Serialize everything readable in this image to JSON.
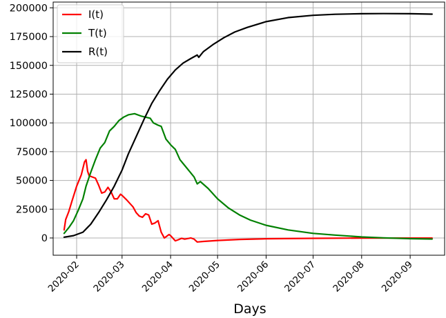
{
  "chart_data": {
    "type": "line",
    "title": "",
    "xlabel": "Days",
    "ylabel": "",
    "x_axis": "date",
    "xlim": [
      "2020-01-17",
      "2020-09-23"
    ],
    "ylim": [
      -15000,
      205000
    ],
    "grid": true,
    "legend_position": "upper-left",
    "xticks": [
      "2020-02",
      "2020-03",
      "2020-04",
      "2020-05",
      "2020-06",
      "2020-07",
      "2020-08",
      "2020-09"
    ],
    "xtick_dates": [
      "2020-02-01",
      "2020-03-01",
      "2020-04-01",
      "2020-05-01",
      "2020-06-01",
      "2020-07-01",
      "2020-08-01",
      "2020-09-01"
    ],
    "yticks": [
      0,
      25000,
      50000,
      75000,
      100000,
      125000,
      150000,
      175000,
      200000
    ],
    "ytick_labels": [
      "0",
      "25000",
      "50000",
      "75000",
      "100000",
      "125000",
      "150000",
      "175000",
      "200000"
    ],
    "series": [
      {
        "name": "I(t)",
        "color": "#ff0000",
        "points": [
          [
            "2020-01-24",
            7000
          ],
          [
            "2020-01-25",
            16000
          ],
          [
            "2020-01-27",
            23000
          ],
          [
            "2020-01-29",
            32000
          ],
          [
            "2020-02-01",
            45000
          ],
          [
            "2020-02-04",
            55000
          ],
          [
            "2020-02-06",
            66000
          ],
          [
            "2020-02-07",
            68000
          ],
          [
            "2020-02-08",
            58000
          ],
          [
            "2020-02-09",
            54000
          ],
          [
            "2020-02-13",
            52000
          ],
          [
            "2020-02-15",
            46000
          ],
          [
            "2020-02-17",
            39000
          ],
          [
            "2020-02-19",
            40000
          ],
          [
            "2020-02-21",
            44000
          ],
          [
            "2020-02-23",
            40000
          ],
          [
            "2020-02-25",
            34000
          ],
          [
            "2020-02-27",
            34000
          ],
          [
            "2020-02-29",
            38000
          ],
          [
            "2020-03-01",
            37000
          ],
          [
            "2020-03-04",
            33000
          ],
          [
            "2020-03-08",
            27000
          ],
          [
            "2020-03-10",
            22000
          ],
          [
            "2020-03-12",
            19000
          ],
          [
            "2020-03-14",
            18000
          ],
          [
            "2020-03-16",
            21000
          ],
          [
            "2020-03-18",
            20000
          ],
          [
            "2020-03-20",
            12000
          ],
          [
            "2020-03-22",
            13000
          ],
          [
            "2020-03-24",
            15000
          ],
          [
            "2020-03-26",
            5000
          ],
          [
            "2020-03-28",
            0
          ],
          [
            "2020-03-31",
            3000
          ],
          [
            "2020-04-01",
            2000
          ],
          [
            "2020-04-04",
            -2500
          ],
          [
            "2020-04-06",
            -1500
          ],
          [
            "2020-04-08",
            -300
          ],
          [
            "2020-04-10",
            -1000
          ],
          [
            "2020-04-12",
            -500
          ],
          [
            "2020-04-14",
            0
          ],
          [
            "2020-04-16",
            -1000
          ],
          [
            "2020-04-18",
            -3500
          ],
          [
            "2020-04-22",
            -3000
          ],
          [
            "2020-05-01",
            -2200
          ],
          [
            "2020-05-15",
            -1300
          ],
          [
            "2020-06-01",
            -700
          ],
          [
            "2020-07-01",
            -300
          ],
          [
            "2020-08-01",
            -100
          ],
          [
            "2020-09-01",
            -50
          ],
          [
            "2020-09-15",
            -50
          ]
        ]
      },
      {
        "name": "T(t)",
        "color": "#008000",
        "points": [
          [
            "2020-01-24",
            4000
          ],
          [
            "2020-01-27",
            9000
          ],
          [
            "2020-01-30",
            15000
          ],
          [
            "2020-02-02",
            24000
          ],
          [
            "2020-02-05",
            34000
          ],
          [
            "2020-02-07",
            45000
          ],
          [
            "2020-02-10",
            57000
          ],
          [
            "2020-02-13",
            68000
          ],
          [
            "2020-02-16",
            78000
          ],
          [
            "2020-02-19",
            83000
          ],
          [
            "2020-02-22",
            93000
          ],
          [
            "2020-02-25",
            97000
          ],
          [
            "2020-02-28",
            102000
          ],
          [
            "2020-03-02",
            105000
          ],
          [
            "2020-03-05",
            107000
          ],
          [
            "2020-03-09",
            108000
          ],
          [
            "2020-03-13",
            106000
          ],
          [
            "2020-03-16",
            105000
          ],
          [
            "2020-03-19",
            104000
          ],
          [
            "2020-03-21",
            100000
          ],
          [
            "2020-03-24",
            98000
          ],
          [
            "2020-03-26",
            97000
          ],
          [
            "2020-03-29",
            86000
          ],
          [
            "2020-04-01",
            81000
          ],
          [
            "2020-04-04",
            77000
          ],
          [
            "2020-04-07",
            68000
          ],
          [
            "2020-04-10",
            63000
          ],
          [
            "2020-04-13",
            58000
          ],
          [
            "2020-04-16",
            53000
          ],
          [
            "2020-04-18",
            47000
          ],
          [
            "2020-04-20",
            49000
          ],
          [
            "2020-04-25",
            43000
          ],
          [
            "2020-05-01",
            34000
          ],
          [
            "2020-05-08",
            26000
          ],
          [
            "2020-05-15",
            20000
          ],
          [
            "2020-05-22",
            15500
          ],
          [
            "2020-06-01",
            11000
          ],
          [
            "2020-06-15",
            7000
          ],
          [
            "2020-07-01",
            4000
          ],
          [
            "2020-07-15",
            2500
          ],
          [
            "2020-08-01",
            900
          ],
          [
            "2020-08-15",
            100
          ],
          [
            "2020-09-01",
            -600
          ],
          [
            "2020-09-15",
            -900
          ]
        ]
      },
      {
        "name": "R(t)",
        "color": "#000000",
        "points": [
          [
            "2020-01-24",
            700
          ],
          [
            "2020-01-30",
            2000
          ],
          [
            "2020-02-05",
            5000
          ],
          [
            "2020-02-10",
            12000
          ],
          [
            "2020-02-15",
            22000
          ],
          [
            "2020-02-20",
            33000
          ],
          [
            "2020-02-25",
            45000
          ],
          [
            "2020-03-01",
            59000
          ],
          [
            "2020-03-05",
            73000
          ],
          [
            "2020-03-10",
            88000
          ],
          [
            "2020-03-15",
            103000
          ],
          [
            "2020-03-20",
            117000
          ],
          [
            "2020-03-25",
            128000
          ],
          [
            "2020-03-30",
            138000
          ],
          [
            "2020-04-04",
            146000
          ],
          [
            "2020-04-09",
            152000
          ],
          [
            "2020-04-14",
            156000
          ],
          [
            "2020-04-18",
            159000
          ],
          [
            "2020-04-19",
            157000
          ],
          [
            "2020-04-22",
            162000
          ],
          [
            "2020-04-28",
            168000
          ],
          [
            "2020-05-05",
            174000
          ],
          [
            "2020-05-12",
            179000
          ],
          [
            "2020-05-20",
            183000
          ],
          [
            "2020-06-01",
            188000
          ],
          [
            "2020-06-15",
            191500
          ],
          [
            "2020-07-01",
            193500
          ],
          [
            "2020-07-15",
            194400
          ],
          [
            "2020-08-01",
            194900
          ],
          [
            "2020-08-15",
            195000
          ],
          [
            "2020-09-01",
            194900
          ],
          [
            "2020-09-15",
            194500
          ]
        ]
      }
    ]
  }
}
